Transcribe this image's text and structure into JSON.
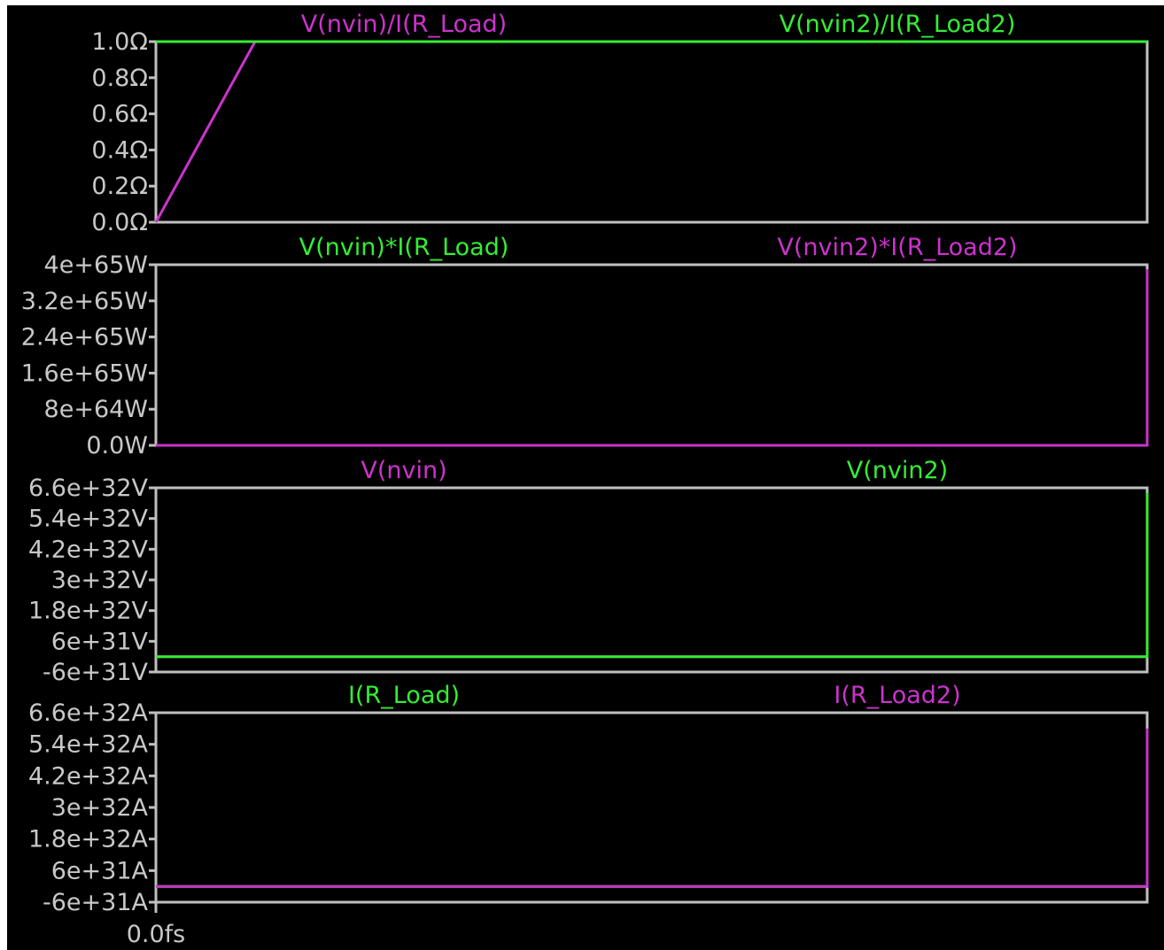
{
  "colors": {
    "background": "#000000",
    "frame": "#c0c0c0",
    "green": "#33ee33",
    "magenta": "#cc33cc"
  },
  "x_axis": {
    "label": "0.0fs"
  },
  "chart_data": [
    {
      "type": "line",
      "ylabel": "",
      "ylim": [
        0,
        1
      ],
      "y_ticks": [
        "1.0Ω",
        "0.8Ω",
        "0.6Ω",
        "0.4Ω",
        "0.2Ω",
        "0.0Ω"
      ],
      "y_tick_values": [
        1.0,
        0.8,
        0.6,
        0.4,
        0.2,
        0.0
      ],
      "legend": [
        {
          "name": "V(nvin)/I(R_Load)",
          "color": "magenta"
        },
        {
          "name": "V(nvin2)/I(R_Load2)",
          "color": "green"
        }
      ],
      "series": [
        {
          "name": "V(nvin)/I(R_Load)",
          "color": "magenta",
          "x": [
            0,
            0.1,
            1.0
          ],
          "y": [
            0,
            1,
            1
          ]
        },
        {
          "name": "V(nvin2)/I(R_Load2)",
          "color": "green",
          "x": [
            0,
            1.0
          ],
          "y": [
            1,
            1
          ]
        }
      ]
    },
    {
      "type": "line",
      "ylabel": "",
      "ylim": [
        0,
        4e+65
      ],
      "y_ticks": [
        "4e+65W",
        "3.2e+65W",
        "2.4e+65W",
        "1.6e+65W",
        "8e+64W",
        "0.0W"
      ],
      "y_tick_values": [
        4e+65,
        3.2e+65,
        2.4e+65,
        1.6e+65,
        8e+64,
        0
      ],
      "legend": [
        {
          "name": "V(nvin)*I(R_Load)",
          "color": "green"
        },
        {
          "name": "V(nvin2)*I(R_Load2)",
          "color": "magenta"
        }
      ],
      "series": [
        {
          "name": "V(nvin)*I(R_Load)",
          "color": "green",
          "x": [
            0,
            1.0,
            1.0
          ],
          "y": [
            0,
            0,
            0
          ]
        },
        {
          "name": "V(nvin2)*I(R_Load2)",
          "color": "magenta",
          "x": [
            0,
            1.0,
            1.0
          ],
          "y": [
            0,
            0,
            3.9e+65
          ]
        }
      ]
    },
    {
      "type": "line",
      "ylabel": "",
      "ylim": [
        -6e+31,
        6.6e+32
      ],
      "y_ticks": [
        "6.6e+32V",
        "5.4e+32V",
        "4.2e+32V",
        "3e+32V",
        "1.8e+32V",
        "6e+31V",
        "-6e+31V"
      ],
      "y_tick_values": [
        6.6e+32,
        5.4e+32,
        4.2e+32,
        3e+32,
        1.8e+32,
        6e+31,
        -6e+31
      ],
      "legend": [
        {
          "name": "V(nvin)",
          "color": "magenta"
        },
        {
          "name": "V(nvin2)",
          "color": "green"
        }
      ],
      "series": [
        {
          "name": "V(nvin)",
          "color": "magenta",
          "x": [
            0,
            1.0
          ],
          "y": [
            0,
            0
          ]
        },
        {
          "name": "V(nvin2)",
          "color": "green",
          "x": [
            0,
            1.0,
            1.0
          ],
          "y": [
            0,
            0,
            6.4e+32
          ]
        }
      ]
    },
    {
      "type": "line",
      "ylabel": "",
      "ylim": [
        -6e+31,
        6.6e+32
      ],
      "y_ticks": [
        "6.6e+32A",
        "5.4e+32A",
        "4.2e+32A",
        "3e+32A",
        "1.8e+32A",
        "6e+31A",
        "-6e+31A"
      ],
      "y_tick_values": [
        6.6e+32,
        5.4e+32,
        4.2e+32,
        3e+32,
        1.8e+32,
        6e+31,
        -6e+31
      ],
      "legend": [
        {
          "name": "I(R_Load)",
          "color": "green"
        },
        {
          "name": "I(R_Load2)",
          "color": "magenta"
        }
      ],
      "series": [
        {
          "name": "I(R_Load)",
          "color": "green",
          "x": [
            0,
            1.0
          ],
          "y": [
            0,
            0
          ]
        },
        {
          "name": "I(R_Load2)",
          "color": "magenta",
          "x": [
            0,
            1.0,
            1.0
          ],
          "y": [
            0,
            0,
            6e+32
          ]
        }
      ]
    }
  ]
}
